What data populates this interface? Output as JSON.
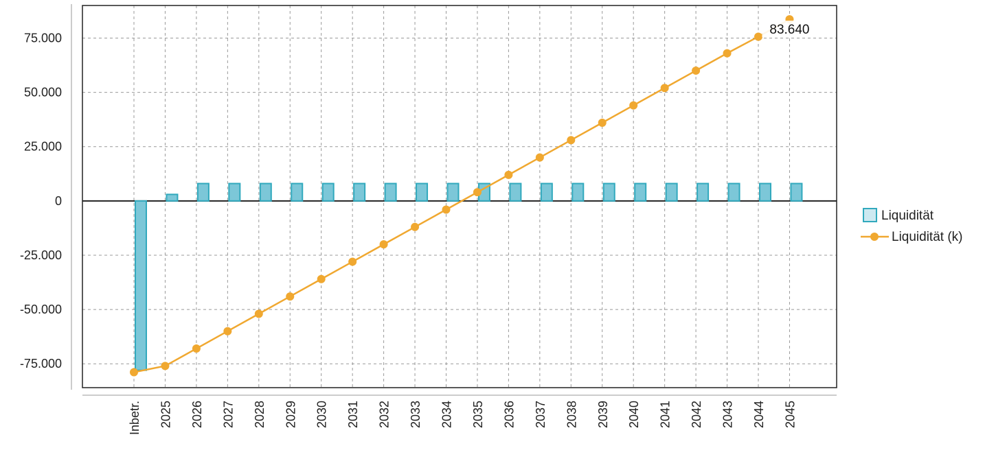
{
  "chart_data": {
    "type": "bar",
    "title": "",
    "xlabel": "",
    "ylabel": "",
    "categories": [
      "Inbetr.",
      "2025",
      "2026",
      "2027",
      "2028",
      "2029",
      "2030",
      "2031",
      "2032",
      "2033",
      "2034",
      "2035",
      "2036",
      "2037",
      "2038",
      "2039",
      "2040",
      "2041",
      "2042",
      "2043",
      "2044",
      "2045"
    ],
    "series": [
      {
        "name": "Liquidität",
        "type": "bar",
        "color": "#7cc7d8",
        "edge_color": "#31a9bd",
        "values": [
          -78000,
          3000,
          8000,
          8000,
          8000,
          8000,
          8000,
          8000,
          8000,
          8000,
          8000,
          8000,
          8000,
          8000,
          8000,
          8000,
          8000,
          8000,
          8000,
          8000,
          8000,
          8000
        ]
      },
      {
        "name": "Liquidität (k)",
        "type": "line",
        "color": "#f0a830",
        "values": [
          -78900,
          -76000,
          -68000,
          -60000,
          -52000,
          -44000,
          -36000,
          -28000,
          -20000,
          -12000,
          -4000,
          4000,
          12000,
          20000,
          28000,
          36000,
          44000,
          52000,
          60000,
          68000,
          75640,
          83640
        ]
      }
    ],
    "ylim": [
      -86000,
      90000
    ],
    "yticks": [
      -75000,
      -50000,
      -25000,
      0,
      25000,
      50000,
      75000
    ],
    "ytick_labels": [
      "-75.000",
      "-50.000",
      "-25.000",
      "0",
      "25.000",
      "50.000",
      "75.000"
    ],
    "grid": true,
    "legend_position": "right",
    "annotations": [
      {
        "series": "Liquidität (k)",
        "category": "2045",
        "text": "83.640"
      }
    ]
  }
}
